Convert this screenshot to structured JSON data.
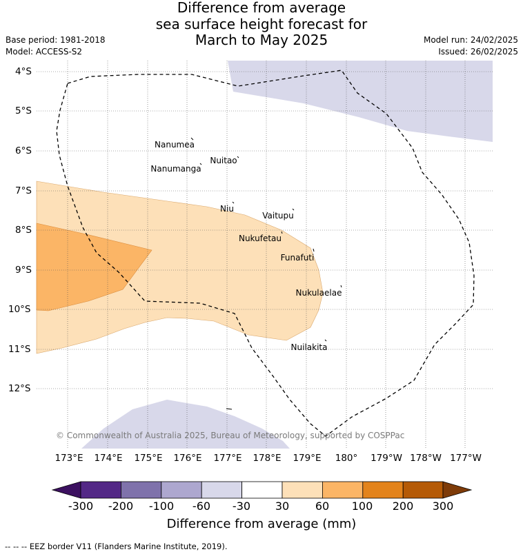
{
  "title": {
    "line1": "Difference from average",
    "line2": "sea surface height forecast for",
    "line3": "March to May 2025"
  },
  "meta": {
    "base_period": "Base period: 1981-2018",
    "model": "Model: ACCESS-S2",
    "model_run": "Model run: 24/02/2025",
    "issued": "Issued: 26/02/2025"
  },
  "map": {
    "lon_ticks": [
      "173°E",
      "174°E",
      "175°E",
      "176°E",
      "177°E",
      "178°E",
      "179°E",
      "180°",
      "179°W",
      "178°W",
      "177°W"
    ],
    "lat_ticks": [
      "4°S",
      "5°S",
      "6°S",
      "7°S",
      "8°S",
      "9°S",
      "10°S",
      "11°S",
      "12°S"
    ],
    "islands": [
      {
        "name": "Nanumea"
      },
      {
        "name": "Nuitao"
      },
      {
        "name": "Nanumanga"
      },
      {
        "name": "Niu"
      },
      {
        "name": "Vaitupu"
      },
      {
        "name": "Nukufetau"
      },
      {
        "name": "Funafuti"
      },
      {
        "name": "Nukulaelae"
      },
      {
        "name": "Nuilakita"
      }
    ],
    "copyright": "© Commonwealth of Australia 2025, Bureau of Meteorology, supported by COSPPac",
    "colors": {
      "band_30_60": "#fde0b8",
      "band_60_100": "#fbb566",
      "band_neg30_neg60": "#d8d8ea",
      "eez_border": "#000000"
    }
  },
  "colorbar": {
    "label": "Difference from average (mm)",
    "ticks": [
      "-300",
      "-200",
      "-100",
      "-60",
      "-30",
      "30",
      "60",
      "100",
      "200",
      "300"
    ],
    "colors": [
      "#3c1160",
      "#532886",
      "#7f72ab",
      "#ada7cf",
      "#d8d8ea",
      "#ffffff",
      "#fde0b8",
      "#fbb566",
      "#e3831b",
      "#b55a06",
      "#7e3b08"
    ]
  },
  "footnote": "--  --  -- EEZ border V11 (Flanders Marine Institute, 2019)."
}
